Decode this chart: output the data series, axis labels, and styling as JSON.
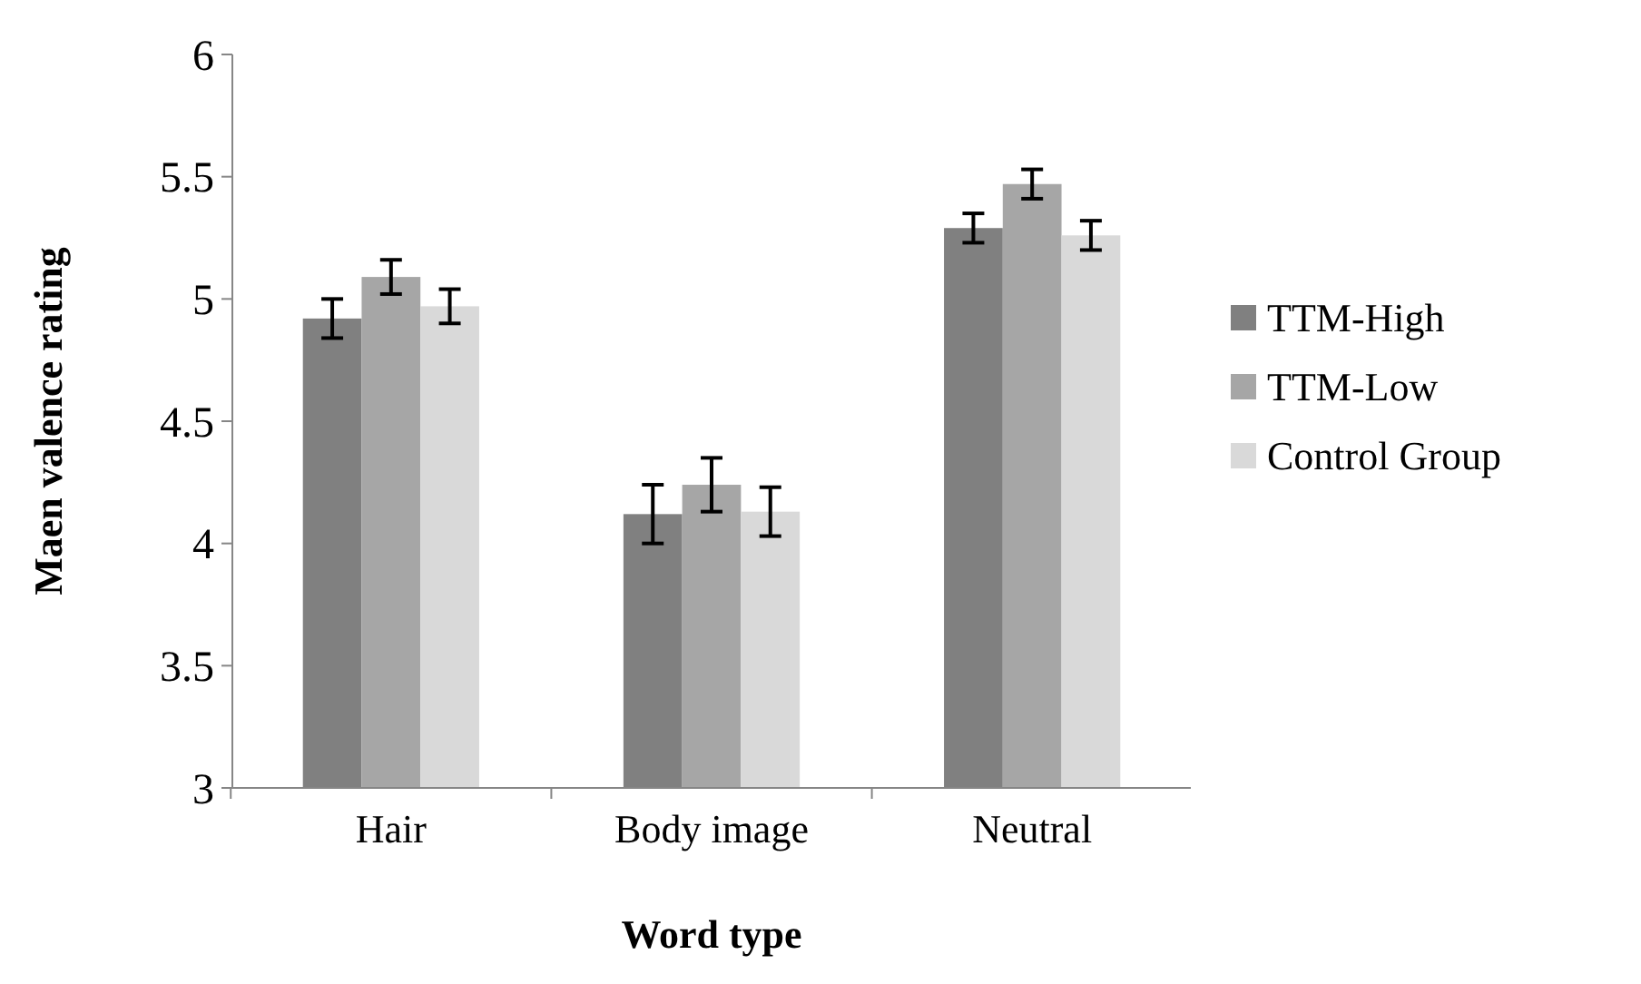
{
  "chart_data": {
    "type": "bar",
    "xlabel": "Word type",
    "ylabel": "Maen valence rating",
    "categories": [
      "Hair",
      "Body image",
      "Neutral"
    ],
    "series": [
      {
        "name": "TTM-High",
        "color": "#808080",
        "values": [
          4.92,
          4.12,
          5.29
        ],
        "errors": [
          0.08,
          0.12,
          0.06
        ]
      },
      {
        "name": "TTM-Low",
        "color": "#a6a6a6",
        "values": [
          5.09,
          4.24,
          5.47
        ],
        "errors": [
          0.07,
          0.11,
          0.06
        ]
      },
      {
        "name": "Control Group",
        "color": "#d9d9d9",
        "values": [
          4.97,
          4.13,
          5.26
        ],
        "errors": [
          0.07,
          0.1,
          0.06
        ]
      }
    ],
    "ylim": [
      3,
      6
    ],
    "yticks": [
      3,
      3.5,
      4,
      4.5,
      5,
      5.5,
      6
    ],
    "grid": false,
    "legend": "right"
  }
}
